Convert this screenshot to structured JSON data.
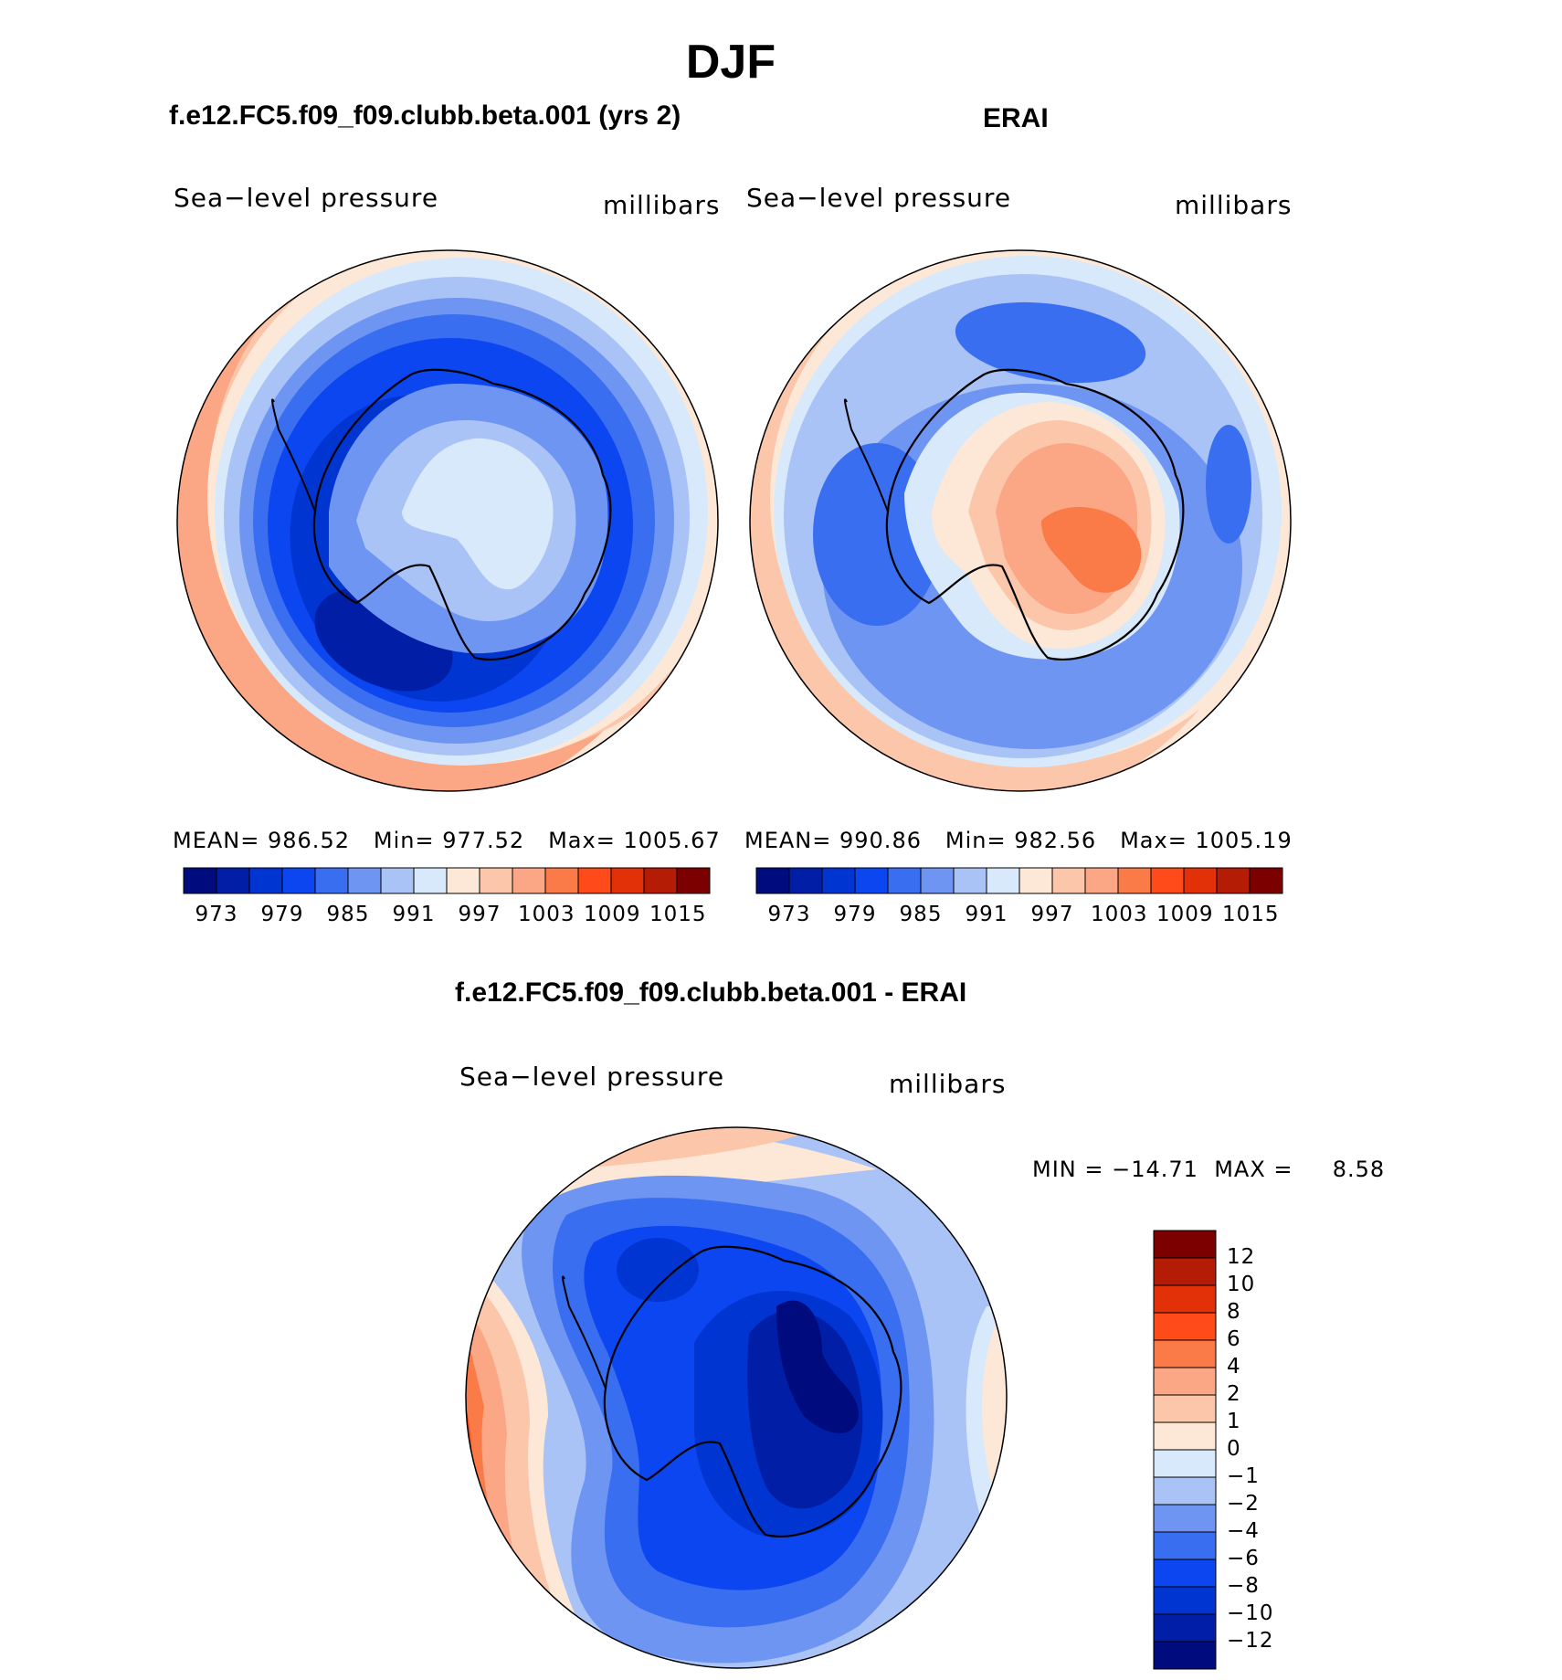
{
  "title": "DJF",
  "panels": [
    {
      "name": "model",
      "title": "f.e12.FC5.f09_f09.clubb.beta.001 (yrs 2)",
      "variable": "Sea−level pressure",
      "units": "millibars",
      "stats": {
        "mean_label": "MEAN=",
        "mean": "986.52",
        "min_label": "Min=",
        "min": "977.52",
        "max_label": "Max=",
        "max": "1005.67"
      }
    },
    {
      "name": "obs",
      "title": "ERAI",
      "variable": "Sea−level pressure",
      "units": "millibars",
      "stats": {
        "mean_label": "MEAN=",
        "mean": "990.86",
        "min_label": "Min=",
        "min": "982.56",
        "max_label": "Max=",
        "max": "1005.19"
      }
    },
    {
      "name": "diff",
      "title": "f.e12.FC5.f09_f09.clubb.beta.001 - ERAI",
      "variable": "Sea−level pressure",
      "units": "millibars",
      "stats": {
        "min_label": "MIN =",
        "min": "−14.71",
        "max_label": "MAX =",
        "max": "8.58"
      }
    }
  ],
  "abs_colorbar": {
    "tick_labels": [
      "973",
      "979",
      "985",
      "991",
      "997",
      "1003",
      "1009",
      "1015"
    ],
    "colors": [
      "#000c7e",
      "#001ea6",
      "#0035d2",
      "#0b46f0",
      "#3a6ef0",
      "#6e95f2",
      "#a9c3f7",
      "#d7e9fb",
      "#fde8d7",
      "#fcc6aa",
      "#fba684",
      "#fa7a48",
      "#ff4a1a",
      "#e23008",
      "#b41c05",
      "#7d0000"
    ]
  },
  "diff_colorbar": {
    "tick_labels": [
      "12",
      "10",
      "8",
      "6",
      "4",
      "2",
      "1",
      "0",
      "−1",
      "−2",
      "−4",
      "−6",
      "−8",
      "−10",
      "−12"
    ],
    "colors": [
      "#7d0000",
      "#b41c05",
      "#e23008",
      "#ff4a1a",
      "#fa7a48",
      "#fba684",
      "#fcc6aa",
      "#fde8d7",
      "#d7e9fb",
      "#a9c3f7",
      "#6e95f2",
      "#3a6ef0",
      "#0b46f0",
      "#0035d2",
      "#001ea6",
      "#000c7e"
    ]
  },
  "map_palette": {
    "deep": "#001ea6",
    "dark": "#0035d2",
    "mid": "#0b46f0",
    "blue": "#3a6ef0",
    "medium": "#6e95f2",
    "light": "#a9c3f7",
    "pale": "#d7e9fb",
    "cream": "#fde8d7",
    "peach": "#fcc6aa",
    "salmon": "#fba684",
    "orange": "#fa7a48",
    "red": "#ff4a1a",
    "darkred": "#e23008"
  }
}
